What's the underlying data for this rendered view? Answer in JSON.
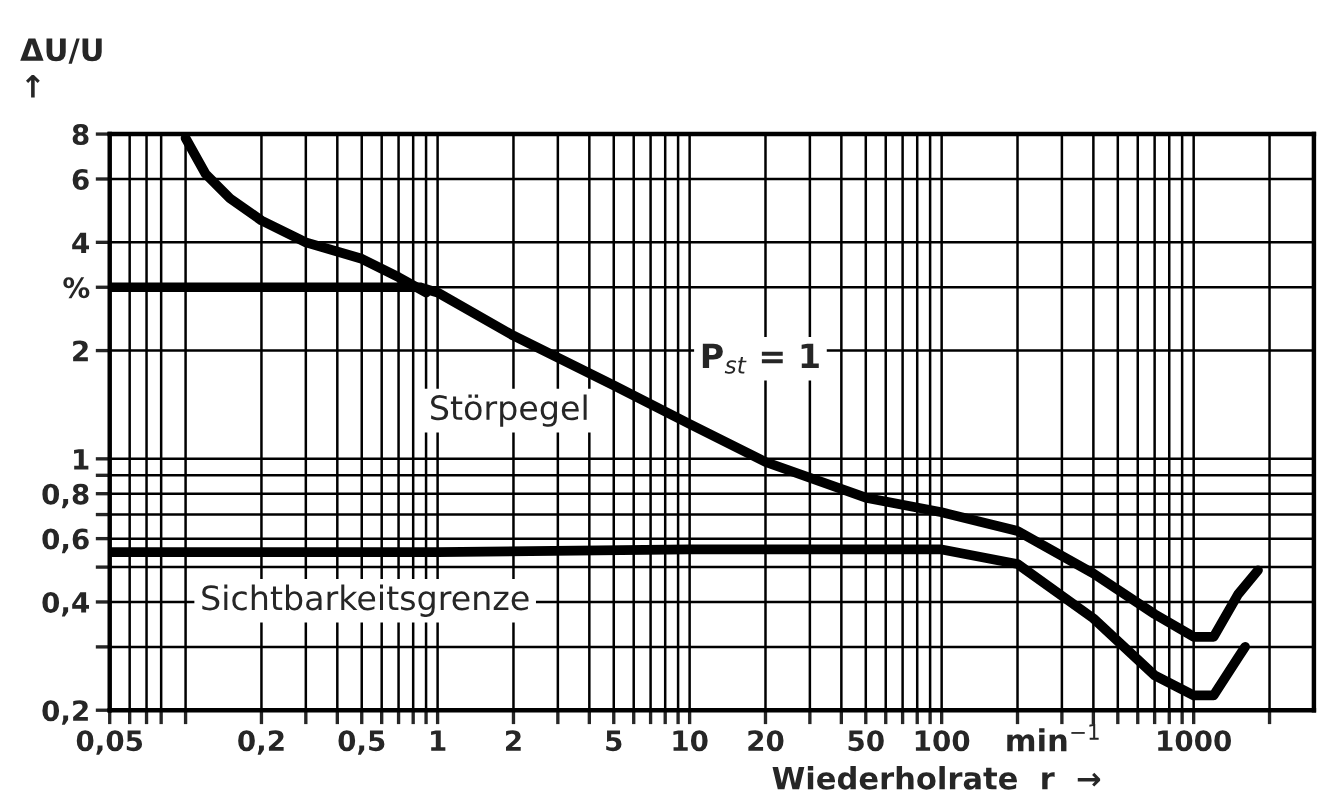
{
  "chart_data": {
    "type": "line",
    "xlabel": "min$^{−1}$\nWiederholrate  r  →",
    "ylabel": "ΔU/U\n↑",
    "log": "xy",
    "xlim": [
      0.05,
      3000
    ],
    "ylim": [
      0.2,
      8
    ],
    "xticks": [
      {
        "value": 0.05,
        "label": "0,05"
      },
      {
        "value": 0.06,
        "label": null
      },
      {
        "value": 0.07,
        "label": null
      },
      {
        "value": 0.08,
        "label": null
      },
      {
        "value": 0.1,
        "label": null
      },
      {
        "value": 0.2,
        "label": "0,2"
      },
      {
        "value": 0.3,
        "label": null
      },
      {
        "value": 0.4,
        "label": null
      },
      {
        "value": 0.5,
        "label": "0,5"
      },
      {
        "value": 0.6,
        "label": null
      },
      {
        "value": 0.7,
        "label": null
      },
      {
        "value": 0.8,
        "label": null
      },
      {
        "value": 0.9,
        "label": null
      },
      1,
      2,
      {
        "value": 3,
        "label": null
      },
      {
        "value": 4,
        "label": null
      },
      5,
      {
        "value": 6,
        "label": null
      },
      {
        "value": 7,
        "label": null
      },
      {
        "value": 8,
        "label": null
      },
      {
        "value": 9,
        "label": null
      },
      10,
      20,
      {
        "value": 30,
        "label": null
      },
      {
        "value": 40,
        "label": null
      },
      50,
      {
        "value": 60,
        "label": null
      },
      {
        "value": 70,
        "label": null
      },
      {
        "value": 80,
        "label": null
      },
      {
        "value": 90,
        "label": null
      },
      100,
      {
        "value": 200,
        "label": null
      },
      {
        "value": 300,
        "label": null
      },
      {
        "value": 400,
        "label": null
      },
      {
        "value": 500,
        "label": null
      },
      {
        "value": 600,
        "label": null
      },
      {
        "value": 700,
        "label": null
      },
      {
        "value": 800,
        "label": null
      },
      {
        "value": 900,
        "label": null
      },
      1000,
      {
        "value": 2000,
        "label": null
      }
    ],
    "yticks": [
      {
        "value": 0.2,
        "label": "0,2"
      },
      {
        "value": 0.3,
        "label": null
      },
      {
        "value": 0.4,
        "label": "0,4"
      },
      {
        "value": 0.5,
        "label": null
      },
      {
        "value": 0.6,
        "label": "0,6"
      },
      {
        "value": 0.7,
        "label": null
      },
      {
        "value": 0.8,
        "label": "0,8"
      },
      {
        "value": 0.9,
        "label": null
      },
      1,
      2,
      {
        "value": 3,
        "label": "%"
      },
      4,
      6,
      8
    ],
    "grid": true,
    "line_style": "solid",
    "marker": "none",
    "series": [
      {
        "color": "#000000",
        "x": [
          0.1,
          0.12,
          0.15,
          0.2,
          0.3,
          0.5,
          0.7,
          0.9
        ],
        "values": [
          7.8,
          6.2,
          5.3,
          4.6,
          4.0,
          3.6,
          3.2,
          2.9
        ]
      },
      {
        "color": "#000000",
        "x": [
          0.05,
          0.3,
          0.7,
          0.85,
          1,
          2,
          5,
          10,
          20,
          50,
          100,
          200,
          400,
          700,
          1000,
          1200,
          1500,
          1800
        ],
        "values": [
          3,
          3,
          3,
          3,
          2.9,
          2.2,
          1.6,
          1.25,
          0.98,
          0.78,
          0.71,
          0.63,
          0.48,
          0.37,
          0.32,
          0.32,
          0.42,
          0.49
        ]
      },
      {
        "color": "#000000",
        "x": [
          0.05,
          1,
          10,
          50,
          100,
          200,
          400,
          700,
          1000,
          1200,
          1500,
          1600
        ],
        "values": [
          0.55,
          0.55,
          0.56,
          0.56,
          0.56,
          0.51,
          0.36,
          0.25,
          0.22,
          0.22,
          0.28,
          0.3
        ]
      }
    ],
    "annotations": [
      "Störpegel",
      "P$_{st}$ = 1",
      "Sichtbarkeitsgrenze"
    ]
  }
}
